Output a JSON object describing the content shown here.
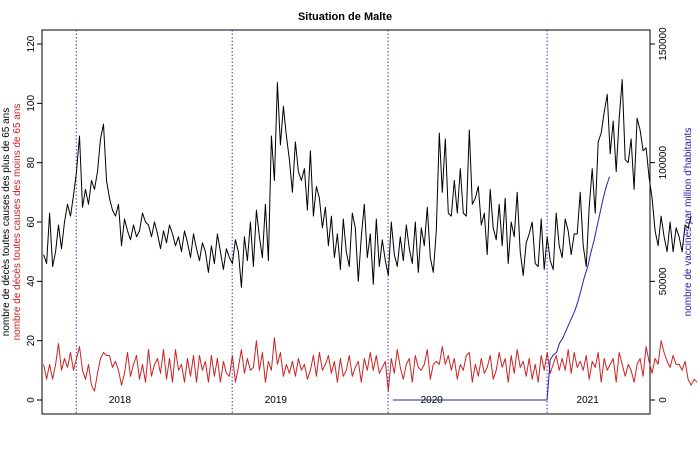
{
  "chart_data": {
    "type": "line",
    "title": "Situation de Malte",
    "ylabel_left_line1": "nombre de décès toutes causes des plus de 65 ans",
    "ylabel_left_line2": "nombre de décès toutes causes des moins de 65 ans",
    "ylabel_right": "nombre de vaccinés par million d'habitants",
    "ylim_left": [
      0,
      120
    ],
    "yticks_left": [
      0,
      20,
      40,
      60,
      80,
      100,
      120
    ],
    "ylim_right": [
      0,
      150000
    ],
    "yticks_right": [
      0,
      50000,
      100000,
      150000
    ],
    "xlim": [
      2017.5,
      2021.4
    ],
    "year_labels": [
      {
        "x": 2018.0,
        "label": "2018"
      },
      {
        "x": 2019.0,
        "label": "2019"
      },
      {
        "x": 2020.0,
        "label": "2020"
      },
      {
        "x": 2021.0,
        "label": "2021"
      }
    ],
    "vlines": [
      2017.72,
      2018.72,
      2019.72,
      2020.74
    ],
    "colors": {
      "over65": "#000000",
      "under65": "#cc2222",
      "vaccinated": "#2222aa",
      "vlines": "#3333cc"
    },
    "series": [
      {
        "name": "nombre de décès toutes causes des plus de 65 ans",
        "axis": "left",
        "x_start": 2017.51,
        "x_step": 0.01923,
        "values": [
          49,
          46,
          63,
          45,
          50,
          59,
          51,
          60,
          66,
          62,
          69,
          77,
          89,
          65,
          71,
          66,
          74,
          71,
          77,
          88,
          93,
          74,
          68,
          64,
          62,
          66,
          52,
          61,
          57,
          54,
          59,
          55,
          57,
          63,
          60,
          59,
          55,
          60,
          56,
          51,
          57,
          53,
          59,
          56,
          52,
          55,
          50,
          57,
          53,
          48,
          56,
          51,
          47,
          53,
          50,
          43,
          52,
          46,
          56,
          50,
          44,
          51,
          48,
          46,
          54,
          50,
          38,
          55,
          47,
          60,
          45,
          64,
          55,
          48,
          66,
          47,
          89,
          74,
          107,
          86,
          99,
          89,
          81,
          70,
          87,
          77,
          74,
          78,
          64,
          84,
          62,
          72,
          68,
          58,
          65,
          52,
          62,
          48,
          56,
          44,
          61,
          50,
          45,
          63,
          58,
          40,
          55,
          66,
          48,
          56,
          39,
          61,
          45,
          54,
          47,
          42,
          60,
          49,
          45,
          55,
          47,
          59,
          51,
          46,
          60,
          43,
          58,
          52,
          65,
          48,
          43,
          57,
          90,
          70,
          88,
          63,
          62,
          74,
          63,
          78,
          63,
          62,
          91,
          66,
          68,
          72,
          59,
          63,
          49,
          71,
          58,
          54,
          66,
          52,
          68,
          46,
          60,
          55,
          70,
          50,
          42,
          53,
          56,
          60,
          46,
          45,
          61,
          44,
          55,
          47,
          44,
          63,
          52,
          48,
          61,
          57,
          49,
          56,
          56,
          70,
          52,
          45,
          65,
          78,
          63,
          87,
          90,
          97,
          103,
          83,
          94,
          77,
          95,
          108,
          81,
          80,
          88,
          71,
          95,
          91,
          84,
          85,
          75,
          68,
          57,
          52,
          62,
          55,
          50,
          60,
          50,
          58,
          55,
          50,
          59,
          58,
          62
        ]
      },
      {
        "name": "nombre de décès toutes causes des moins de 65 ans",
        "axis": "left",
        "x_start": 2017.51,
        "x_step": 0.01923,
        "values": [
          12,
          7,
          12,
          7,
          12,
          19,
          10,
          14,
          11,
          16,
          10,
          14,
          18,
          10,
          7,
          12,
          5,
          3,
          9,
          14,
          16,
          15,
          15,
          11,
          13,
          10,
          5,
          9,
          16,
          8,
          12,
          15,
          7,
          12,
          6,
          17,
          8,
          12,
          14,
          9,
          17,
          7,
          14,
          6,
          17,
          10,
          12,
          6,
          14,
          8,
          15,
          6,
          15,
          10,
          13,
          6,
          15,
          8,
          14,
          6,
          13,
          9,
          8,
          15,
          6,
          11,
          17,
          9,
          14,
          10,
          11,
          20,
          10,
          16,
          6,
          13,
          10,
          21,
          12,
          16,
          8,
          12,
          9,
          13,
          8,
          14,
          10,
          12,
          7,
          10,
          15,
          8,
          16,
          10,
          12,
          15,
          9,
          13,
          6,
          14,
          8,
          10,
          15,
          8,
          11,
          13,
          6,
          14,
          10,
          16,
          10,
          15,
          9,
          11,
          13,
          3,
          14,
          9,
          17,
          11,
          7,
          12,
          14,
          6,
          15,
          11,
          10,
          12,
          17,
          7,
          12,
          13,
          12,
          18,
          12,
          15,
          10,
          14,
          7,
          12,
          10,
          15,
          16,
          6,
          12,
          8,
          14,
          9,
          11,
          15,
          7,
          10,
          16,
          11,
          14,
          6,
          15,
          9,
          17,
          11,
          13,
          8,
          14,
          7,
          12,
          6,
          15,
          10,
          16,
          9,
          12,
          15,
          10,
          14,
          10,
          17,
          9,
          16,
          11,
          13,
          10,
          15,
          7,
          13,
          11,
          16,
          6,
          14,
          10,
          12,
          14,
          6,
          16,
          12,
          8,
          12,
          10,
          6,
          12,
          14,
          8,
          18,
          13,
          9,
          14,
          12,
          20,
          16,
          13,
          11,
          15,
          12,
          12,
          10,
          13,
          7,
          5,
          7,
          6
        ]
      },
      {
        "name": "nombre de vaccinés par million d'habitants",
        "axis": "right",
        "points": [
          [
            2019.75,
            0
          ],
          [
            2020.74,
            0
          ],
          [
            2020.76,
            17000
          ],
          [
            2020.78,
            19000
          ],
          [
            2020.8,
            20000
          ],
          [
            2020.82,
            24000
          ],
          [
            2020.84,
            26000
          ],
          [
            2020.86,
            29000
          ],
          [
            2020.88,
            32000
          ],
          [
            2020.9,
            35000
          ],
          [
            2020.92,
            38000
          ],
          [
            2020.94,
            42000
          ],
          [
            2020.96,
            47000
          ],
          [
            2020.98,
            52000
          ],
          [
            2021.0,
            56000
          ],
          [
            2021.02,
            62000
          ],
          [
            2021.04,
            67000
          ],
          [
            2021.06,
            73000
          ],
          [
            2021.08,
            79000
          ],
          [
            2021.1,
            85000
          ],
          [
            2021.12,
            90000
          ],
          [
            2021.14,
            94000
          ]
        ]
      }
    ]
  }
}
